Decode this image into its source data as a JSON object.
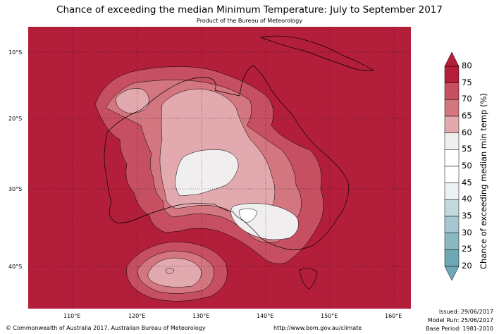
{
  "title": "Chance of exceeding the median Minimum Temperature: July to September 2017",
  "subtitle": "Product of the Bureau of Meteorology",
  "map": {
    "lat_ticks": [
      "10°S",
      "20°S",
      "30°S",
      "40°S"
    ],
    "lon_ticks": [
      "110°E",
      "120°E",
      "130°E",
      "140°E",
      "150°E",
      "160°E"
    ],
    "background_color": "#b31f3a"
  },
  "colorbar": {
    "title": "Chance of exceeding median min temp (%)",
    "labels": [
      "80",
      "75",
      "70",
      "65",
      "60",
      "55",
      "50",
      "45",
      "40",
      "35",
      "30",
      "25",
      "20"
    ],
    "colors": [
      "#b41f3b",
      "#c64f62",
      "#d3767f",
      "#e2a9ae",
      "#f0eeee",
      "#ffffff",
      "#ffffff",
      "#ecf1f3",
      "#c4d8dd",
      "#a6c7cf",
      "#8cb8c2",
      "#6ea8b5"
    ]
  },
  "footer": {
    "copyright": "© Commonwealth of Australia 2017, Australian Bureau of Meteorology",
    "url": "http://www.bom.gov.au/climate",
    "issued": "Issued: 29/06/2017",
    "model_run": "Model Run: 25/06/2017",
    "base_period": "Base Period: 1981-2010"
  }
}
